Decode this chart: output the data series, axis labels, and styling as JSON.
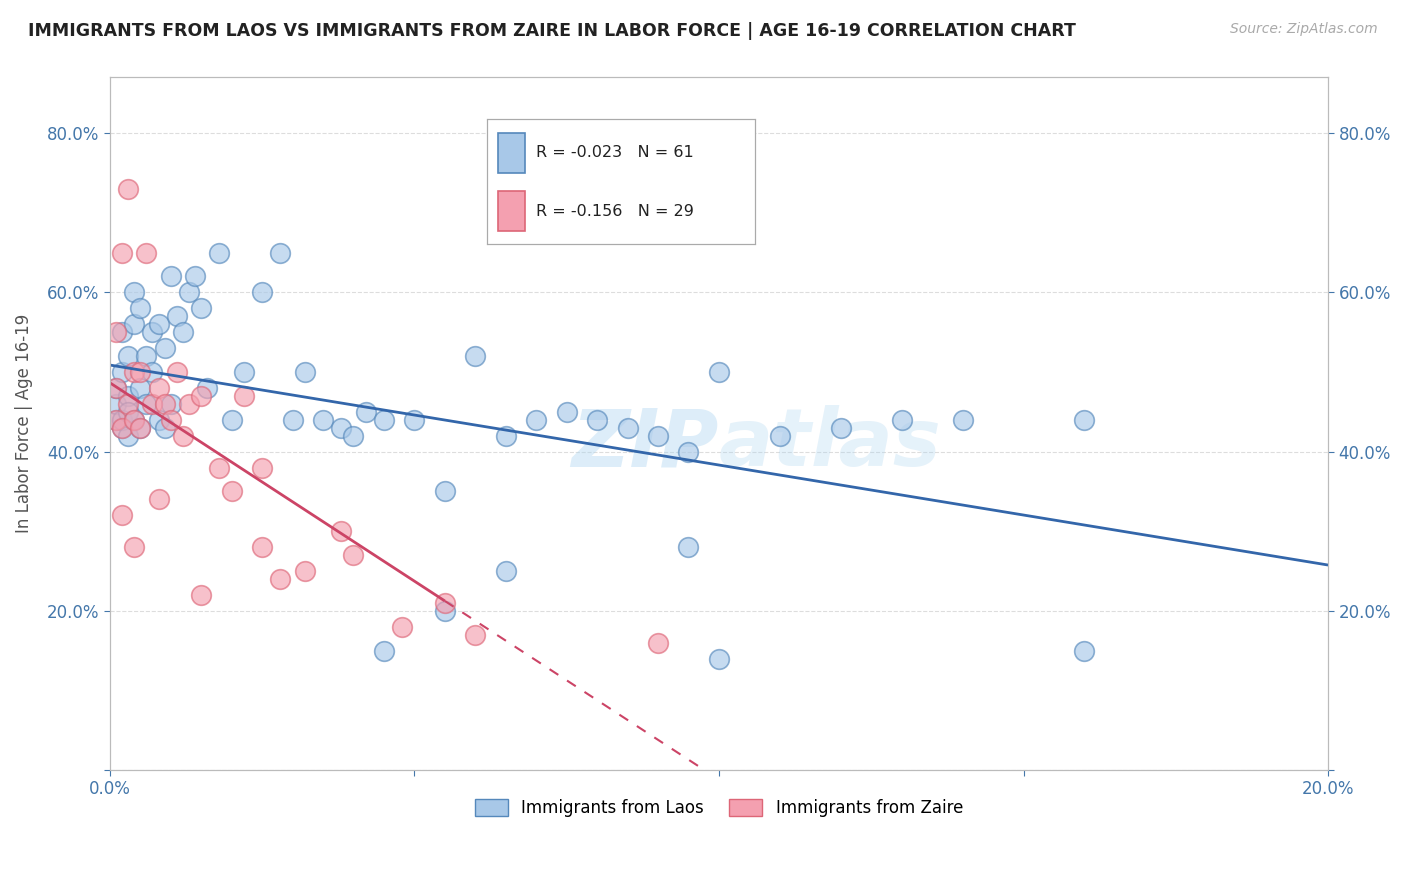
{
  "title": "IMMIGRANTS FROM LAOS VS IMMIGRANTS FROM ZAIRE IN LABOR FORCE | AGE 16-19 CORRELATION CHART",
  "source": "Source: ZipAtlas.com",
  "ylabel": "In Labor Force | Age 16-19",
  "legend_label1": "Immigrants from Laos",
  "legend_label2": "Immigrants from Zaire",
  "R1": -0.023,
  "N1": 61,
  "R2": -0.156,
  "N2": 29,
  "color1": "#a8c8e8",
  "color2": "#f4a0b0",
  "edge1": "#5588bb",
  "edge2": "#dd6677",
  "trendline1_color": "#3366aa",
  "trendline2_color": "#cc4466",
  "xlim": [
    0.0,
    0.2
  ],
  "ylim": [
    0.0,
    0.87
  ],
  "x_ticks": [
    0.0,
    0.05,
    0.1,
    0.15,
    0.2
  ],
  "y_ticks": [
    0.0,
    0.2,
    0.4,
    0.6,
    0.8
  ],
  "scatter1_x": [
    0.001,
    0.001,
    0.001,
    0.002,
    0.002,
    0.002,
    0.002,
    0.003,
    0.003,
    0.003,
    0.003,
    0.004,
    0.004,
    0.004,
    0.005,
    0.005,
    0.005,
    0.006,
    0.006,
    0.007,
    0.007,
    0.008,
    0.008,
    0.009,
    0.009,
    0.01,
    0.01,
    0.011,
    0.012,
    0.013,
    0.014,
    0.015,
    0.016,
    0.018,
    0.02,
    0.022,
    0.025,
    0.028,
    0.03,
    0.032,
    0.035,
    0.038,
    0.04,
    0.042,
    0.045,
    0.05,
    0.055,
    0.06,
    0.065,
    0.07,
    0.075,
    0.08,
    0.085,
    0.09,
    0.095,
    0.1,
    0.11,
    0.12,
    0.13,
    0.14,
    0.16
  ],
  "scatter1_y": [
    0.44,
    0.46,
    0.48,
    0.43,
    0.5,
    0.44,
    0.55,
    0.47,
    0.45,
    0.52,
    0.42,
    0.44,
    0.56,
    0.6,
    0.43,
    0.48,
    0.58,
    0.46,
    0.52,
    0.5,
    0.55,
    0.44,
    0.56,
    0.43,
    0.53,
    0.46,
    0.62,
    0.57,
    0.55,
    0.6,
    0.62,
    0.58,
    0.48,
    0.65,
    0.44,
    0.5,
    0.6,
    0.65,
    0.44,
    0.5,
    0.44,
    0.43,
    0.42,
    0.45,
    0.44,
    0.44,
    0.35,
    0.52,
    0.42,
    0.44,
    0.45,
    0.44,
    0.43,
    0.42,
    0.4,
    0.5,
    0.42,
    0.43,
    0.44,
    0.44,
    0.44
  ],
  "scatter1_x2": [
    0.045,
    0.055,
    0.065,
    0.095,
    0.1,
    0.16
  ],
  "scatter1_y2": [
    0.15,
    0.2,
    0.25,
    0.28,
    0.14,
    0.15
  ],
  "scatter2_x": [
    0.001,
    0.001,
    0.001,
    0.002,
    0.002,
    0.003,
    0.003,
    0.004,
    0.004,
    0.005,
    0.005,
    0.006,
    0.007,
    0.008,
    0.009,
    0.01,
    0.011,
    0.012,
    0.013,
    0.015,
    0.018,
    0.02,
    0.022,
    0.025,
    0.028,
    0.032,
    0.038,
    0.048,
    0.09
  ],
  "scatter2_y": [
    0.44,
    0.48,
    0.55,
    0.43,
    0.65,
    0.73,
    0.46,
    0.5,
    0.44,
    0.43,
    0.5,
    0.65,
    0.46,
    0.48,
    0.46,
    0.44,
    0.5,
    0.42,
    0.46,
    0.47,
    0.38,
    0.35,
    0.47,
    0.38,
    0.24,
    0.25,
    0.3,
    0.18,
    0.16
  ],
  "scatter2_x2": [
    0.002,
    0.004,
    0.008,
    0.015,
    0.025,
    0.04,
    0.055,
    0.06
  ],
  "scatter2_y2": [
    0.32,
    0.28,
    0.34,
    0.22,
    0.28,
    0.27,
    0.21,
    0.17
  ],
  "watermark": "ZIPatlas",
  "background_color": "#ffffff",
  "grid_color": "#dddddd",
  "trendline1_x_end": 0.2,
  "trendline2_solid_end": 0.055,
  "trendline2_x_end": 0.2
}
